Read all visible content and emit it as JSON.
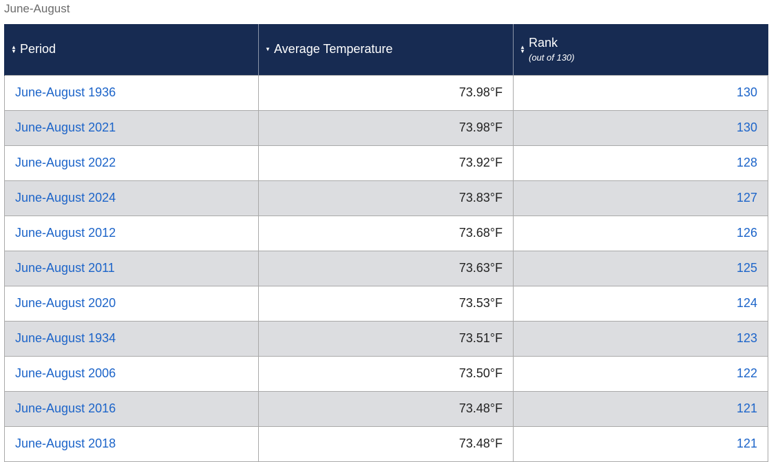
{
  "caption": "June-August",
  "table": {
    "headers": {
      "period": "Period",
      "temperature": "Average Temperature",
      "rank": "Rank",
      "rank_sub": "(out of 130)"
    },
    "rows": [
      {
        "period": "June-August 1936",
        "temp": "73.98°F",
        "rank": "130"
      },
      {
        "period": "June-August 2021",
        "temp": "73.98°F",
        "rank": "130"
      },
      {
        "period": "June-August 2022",
        "temp": "73.92°F",
        "rank": "128"
      },
      {
        "period": "June-August 2024",
        "temp": "73.83°F",
        "rank": "127"
      },
      {
        "period": "June-August 2012",
        "temp": "73.68°F",
        "rank": "126"
      },
      {
        "period": "June-August 2011",
        "temp": "73.63°F",
        "rank": "125"
      },
      {
        "period": "June-August 2020",
        "temp": "73.53°F",
        "rank": "124"
      },
      {
        "period": "June-August 1934",
        "temp": "73.51°F",
        "rank": "123"
      },
      {
        "period": "June-August 2006",
        "temp": "73.50°F",
        "rank": "122"
      },
      {
        "period": "June-August 2016",
        "temp": "73.48°F",
        "rank": "121"
      },
      {
        "period": "June-August 2018",
        "temp": "73.48°F",
        "rank": "121"
      }
    ]
  },
  "icons": {
    "period_sort": "sort-both-icon",
    "temperature_sort": "sort-descending-icon",
    "rank_sort": "sort-both-icon"
  },
  "colors": {
    "header_bg": "#172b52",
    "link": "#1c64c9",
    "alt_row": "#dcdde0"
  }
}
